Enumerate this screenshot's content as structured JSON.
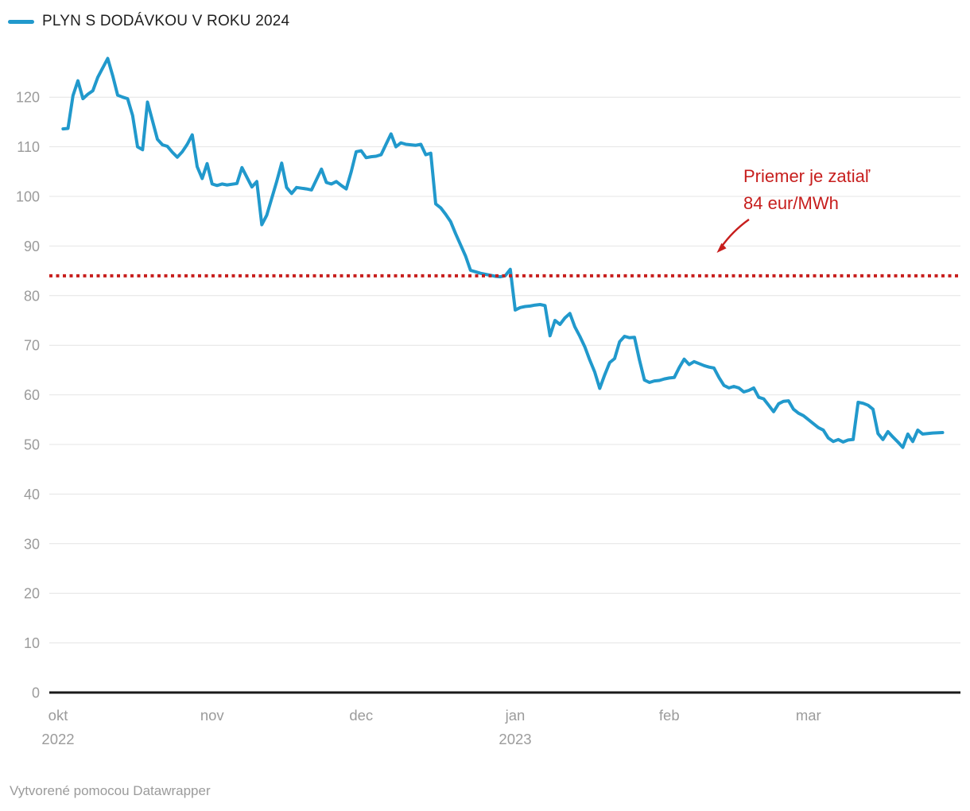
{
  "legend": {
    "series_label": "PLYN S DODÁVKOU V ROKU 2024"
  },
  "annotation": {
    "line1": "Priemer je zatiaľ",
    "line2": "84 eur/MWh"
  },
  "footer": {
    "text": "Vytvorené pomocou Datawrapper"
  },
  "colors": {
    "line": "#2199cc",
    "reference": "#c71e1d",
    "annotation_text": "#c71e1d",
    "grid": "#e4e4e4",
    "baseline": "#1a1a1a",
    "axis_text": "#9b9b9b",
    "legend_text": "#1f1f1f",
    "footer_text": "#9b9b9b"
  },
  "chart_data": {
    "type": "line",
    "title": "",
    "x_start_date": "2022-10-01",
    "x_unit": "days since 2022-10-01",
    "y_unit": "eur/MWh",
    "ylim": [
      0,
      130
    ],
    "yticks": [
      0,
      10,
      20,
      30,
      40,
      50,
      60,
      70,
      80,
      90,
      100,
      110,
      120
    ],
    "grid": "horizontal",
    "legend_position": "top-left",
    "x_ticks": [
      {
        "label": "okt",
        "year": "2022",
        "day": 0
      },
      {
        "label": "nov",
        "day": 31
      },
      {
        "label": "dec",
        "day": 61
      },
      {
        "label": "jan",
        "year": "2023",
        "day": 92
      },
      {
        "label": "feb",
        "day": 123
      },
      {
        "label": "mar",
        "day": 151
      }
    ],
    "reference_line": {
      "value": 84,
      "style": "dotted",
      "label": "Priemer je zatiaľ 84 eur/MWh"
    },
    "series": [
      {
        "name": "PLYN S DODÁVKOU V ROKU 2024",
        "points": [
          [
            1,
            113.6
          ],
          [
            2,
            113.7
          ],
          [
            3,
            120.3
          ],
          [
            4,
            123.3
          ],
          [
            5,
            119.7
          ],
          [
            6,
            120.6
          ],
          [
            7,
            121.3
          ],
          [
            8,
            124.0
          ],
          [
            10,
            127.8
          ],
          [
            11,
            124.3
          ],
          [
            12,
            120.4
          ],
          [
            13,
            120.0
          ],
          [
            14,
            119.7
          ],
          [
            15,
            116.3
          ],
          [
            16,
            110.0
          ],
          [
            17,
            109.4
          ],
          [
            18,
            119.0
          ],
          [
            20,
            111.5
          ],
          [
            21,
            110.4
          ],
          [
            22,
            110.1
          ],
          [
            23,
            108.9
          ],
          [
            24,
            107.9
          ],
          [
            25,
            109.0
          ],
          [
            26,
            110.5
          ],
          [
            27,
            112.4
          ],
          [
            28,
            106.0
          ],
          [
            29,
            103.6
          ],
          [
            30,
            106.6
          ],
          [
            31,
            102.5
          ],
          [
            32,
            102.2
          ],
          [
            33,
            102.5
          ],
          [
            34,
            102.3
          ],
          [
            36,
            102.6
          ],
          [
            37,
            105.8
          ],
          [
            39,
            101.9
          ],
          [
            40,
            103.0
          ],
          [
            41,
            94.3
          ],
          [
            42,
            96.2
          ],
          [
            44,
            103.0
          ],
          [
            45,
            106.7
          ],
          [
            46,
            101.8
          ],
          [
            47,
            100.6
          ],
          [
            48,
            101.8
          ],
          [
            50,
            101.5
          ],
          [
            51,
            101.3
          ],
          [
            53,
            105.5
          ],
          [
            54,
            102.8
          ],
          [
            55,
            102.5
          ],
          [
            56,
            103.0
          ],
          [
            57,
            102.2
          ],
          [
            58,
            101.5
          ],
          [
            59,
            105.0
          ],
          [
            60,
            109.0
          ],
          [
            61,
            109.2
          ],
          [
            62,
            107.8
          ],
          [
            63,
            108.0
          ],
          [
            64,
            108.1
          ],
          [
            65,
            108.4
          ],
          [
            66,
            110.5
          ],
          [
            67,
            112.6
          ],
          [
            68,
            110.0
          ],
          [
            69,
            110.8
          ],
          [
            70,
            110.5
          ],
          [
            72,
            110.3
          ],
          [
            73,
            110.5
          ],
          [
            74,
            108.4
          ],
          [
            75,
            108.7
          ],
          [
            76,
            98.5
          ],
          [
            77,
            97.7
          ],
          [
            78,
            96.4
          ],
          [
            79,
            94.9
          ],
          [
            80,
            92.5
          ],
          [
            82,
            88.0
          ],
          [
            83,
            85.1
          ],
          [
            84,
            84.8
          ],
          [
            85,
            84.5
          ],
          [
            86,
            84.3
          ],
          [
            87,
            84.1
          ],
          [
            88,
            83.9
          ],
          [
            89,
            83.8
          ],
          [
            90,
            84.0
          ],
          [
            91,
            85.3
          ],
          [
            92,
            77.1
          ],
          [
            93,
            77.6
          ],
          [
            94,
            77.8
          ],
          [
            95,
            77.9
          ],
          [
            96,
            78.1
          ],
          [
            97,
            78.2
          ],
          [
            98,
            78.0
          ],
          [
            99,
            71.9
          ],
          [
            100,
            75.0
          ],
          [
            101,
            74.2
          ],
          [
            102,
            75.5
          ],
          [
            103,
            76.4
          ],
          [
            104,
            73.7
          ],
          [
            105,
            71.8
          ],
          [
            106,
            69.7
          ],
          [
            107,
            67.0
          ],
          [
            108,
            64.6
          ],
          [
            109,
            61.3
          ],
          [
            110,
            64.0
          ],
          [
            111,
            66.5
          ],
          [
            112,
            67.3
          ],
          [
            113,
            70.7
          ],
          [
            114,
            71.8
          ],
          [
            115,
            71.5
          ],
          [
            116,
            71.6
          ],
          [
            117,
            67.0
          ],
          [
            118,
            63.0
          ],
          [
            119,
            62.5
          ],
          [
            120,
            62.8
          ],
          [
            121,
            62.9
          ],
          [
            122,
            63.2
          ],
          [
            123,
            63.4
          ],
          [
            124,
            63.5
          ],
          [
            125,
            65.5
          ],
          [
            126,
            67.2
          ],
          [
            127,
            66.1
          ],
          [
            128,
            66.7
          ],
          [
            129,
            66.3
          ],
          [
            130,
            65.9
          ],
          [
            131,
            65.6
          ],
          [
            132,
            65.4
          ],
          [
            133,
            63.5
          ],
          [
            134,
            61.9
          ],
          [
            135,
            61.4
          ],
          [
            136,
            61.7
          ],
          [
            137,
            61.4
          ],
          [
            138,
            60.6
          ],
          [
            139,
            60.9
          ],
          [
            140,
            61.4
          ],
          [
            141,
            59.5
          ],
          [
            142,
            59.2
          ],
          [
            143,
            57.9
          ],
          [
            144,
            56.6
          ],
          [
            145,
            58.2
          ],
          [
            146,
            58.7
          ],
          [
            147,
            58.8
          ],
          [
            148,
            57.1
          ],
          [
            149,
            56.3
          ],
          [
            150,
            55.8
          ],
          [
            151,
            55.0
          ],
          [
            152,
            54.2
          ],
          [
            153,
            53.4
          ],
          [
            154,
            52.9
          ],
          [
            155,
            51.3
          ],
          [
            156,
            50.6
          ],
          [
            157,
            51.0
          ],
          [
            158,
            50.5
          ],
          [
            159,
            50.9
          ],
          [
            160,
            51.0
          ],
          [
            161,
            58.5
          ],
          [
            162,
            58.3
          ],
          [
            163,
            57.9
          ],
          [
            164,
            57.1
          ],
          [
            165,
            52.2
          ],
          [
            166,
            51.0
          ],
          [
            167,
            52.6
          ],
          [
            168,
            51.5
          ],
          [
            169,
            50.5
          ],
          [
            170,
            49.4
          ],
          [
            171,
            52.1
          ],
          [
            172,
            50.6
          ],
          [
            173,
            52.9
          ],
          [
            174,
            52.1
          ],
          [
            175,
            52.2
          ],
          [
            176,
            52.3
          ],
          [
            178,
            52.4
          ]
        ]
      }
    ]
  }
}
